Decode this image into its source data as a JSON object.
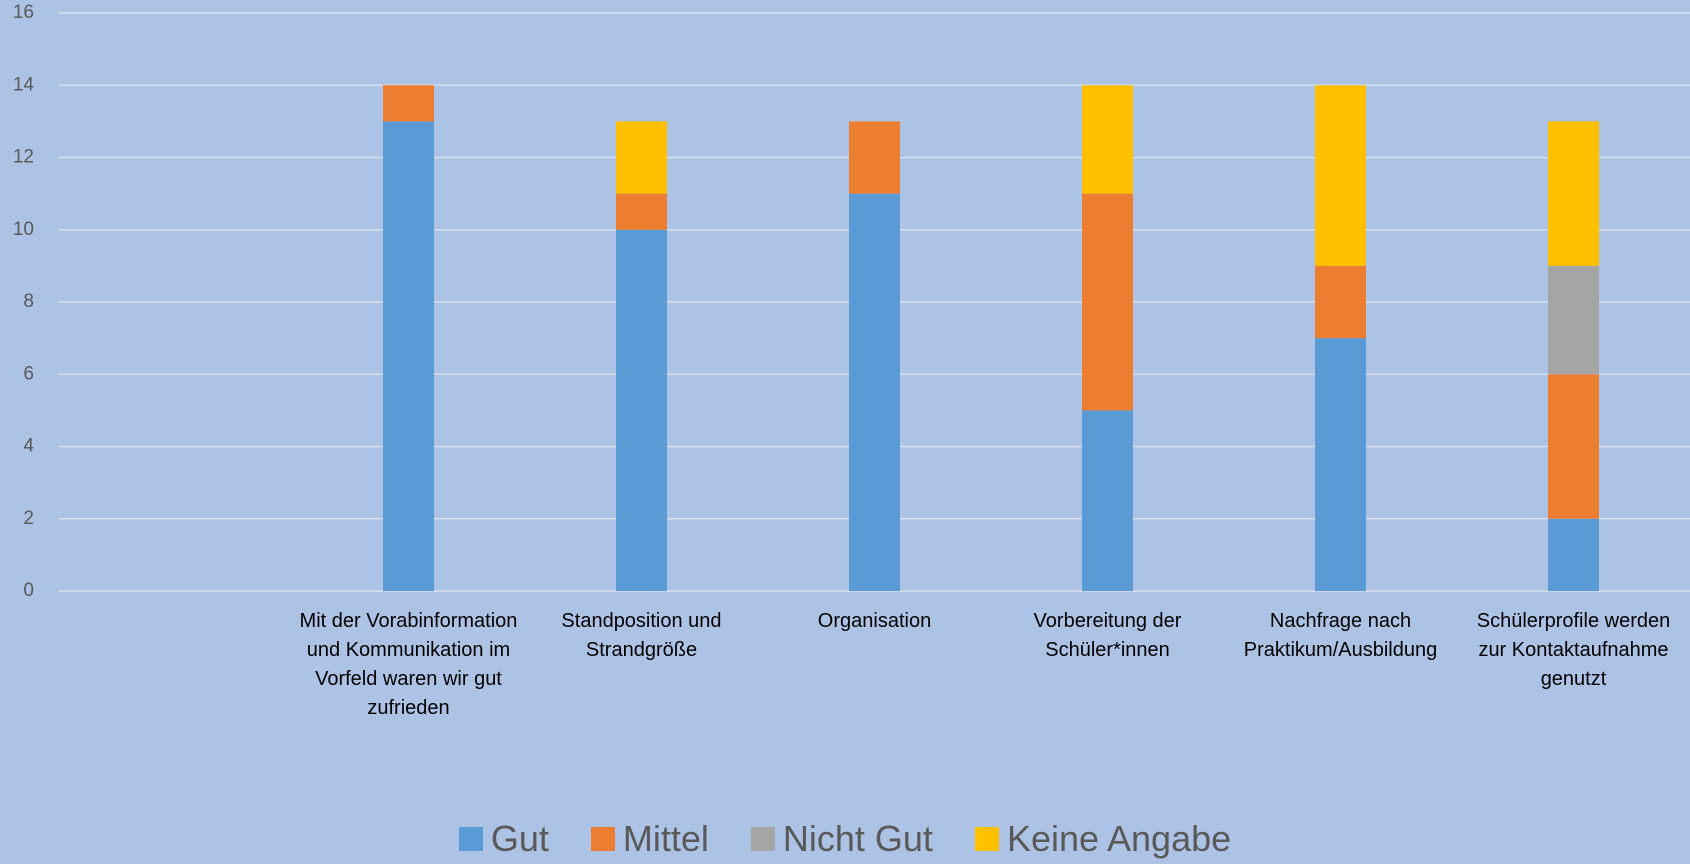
{
  "chart_data": {
    "type": "stacked_bar",
    "categories": [
      null,
      "Mit der Vorabinformation und Kommunikation im Vorfeld waren wir gut zufrieden",
      "Standposition und Strandgröße",
      "Organisation",
      "Vorbereitung der Schüler*innen",
      "Nachfrage nach Praktikum/Ausbildung",
      "Schülerprofile werden zur Kontaktaufnahme genutzt"
    ],
    "series": [
      {
        "name": "Gut",
        "color": "#5b9bd5",
        "values": [
          null,
          13,
          10,
          11,
          5,
          7,
          2
        ]
      },
      {
        "name": "Mittel",
        "color": "#ed7d31",
        "values": [
          null,
          1,
          1,
          2,
          6,
          2,
          4
        ]
      },
      {
        "name": "Nicht Gut",
        "color": "#a5a5a5",
        "values": [
          null,
          0,
          0,
          0,
          0,
          0,
          3
        ]
      },
      {
        "name": "Keine Angabe",
        "color": "#ffc000",
        "values": [
          null,
          0,
          2,
          0,
          3,
          5,
          4
        ]
      }
    ],
    "ylim": [
      0,
      16
    ],
    "yticks": [
      0,
      2,
      4,
      6,
      8,
      10,
      12,
      14,
      16
    ],
    "grid": true,
    "legend": "bottom"
  }
}
